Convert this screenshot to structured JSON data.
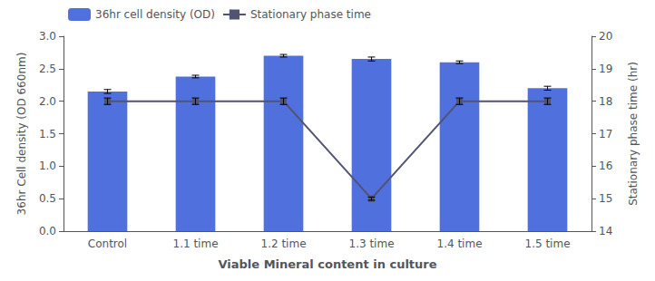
{
  "chart_data": {
    "type": "bar",
    "xlabel": "Viable Mineral content in culture",
    "ylabel": "36hr Cell density (OD 660nm)",
    "y2label": "Stationary phase time (hr)",
    "categories": [
      "Control",
      "1.1 time",
      "1.2 time",
      "1.3 time",
      "1.4 time",
      "1.5 time"
    ],
    "series": [
      {
        "name": "36hr cell density (OD)",
        "type": "bar",
        "values": [
          2.15,
          2.38,
          2.7,
          2.65,
          2.6,
          2.2
        ],
        "errors": [
          0.03,
          0.02,
          0.02,
          0.03,
          0.02,
          0.03
        ]
      },
      {
        "name": "Stationary phase time",
        "type": "line",
        "axis": "y2",
        "marker": "square",
        "values": [
          18.0,
          18.0,
          18.0,
          15.0,
          18.0,
          18.0
        ],
        "errors": [
          0.1,
          0.1,
          0.1,
          0.05,
          0.1,
          0.1
        ]
      }
    ],
    "ylim": [
      0.0,
      3.0
    ],
    "yticks": [
      {
        "value": 0,
        "label": "0.0"
      },
      0.5,
      {
        "value": 1,
        "label": "1.0"
      },
      1.5,
      {
        "value": 2,
        "label": "2.0"
      },
      2.5,
      {
        "value": 3,
        "label": "3.0"
      }
    ],
    "y2lim": [
      14,
      20
    ],
    "y2ticks": [
      14,
      15,
      16,
      17,
      18,
      19,
      20
    ],
    "legend": "upper left",
    "grid": false
  }
}
